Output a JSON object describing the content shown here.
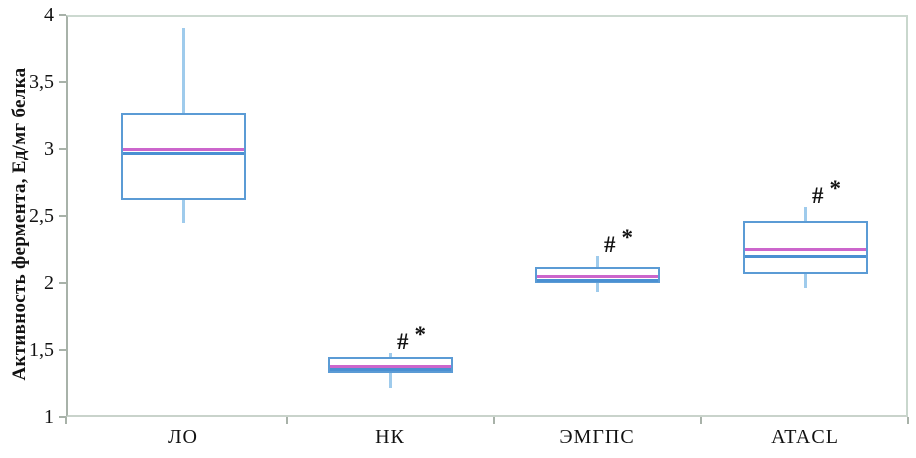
{
  "chart_data": {
    "type": "boxplot",
    "title": "",
    "xlabel": "",
    "ylabel": "Активность фермента, Ед/мг белка",
    "ylim": [
      1,
      4
    ],
    "grid": false,
    "legend": false,
    "yticks": [
      {
        "value": 1,
        "label": "1"
      },
      {
        "value": 1.5,
        "label": "1,5"
      },
      {
        "value": 2,
        "label": "2"
      },
      {
        "value": 2.5,
        "label": "2,5"
      },
      {
        "value": 3,
        "label": "3"
      },
      {
        "value": 3.5,
        "label": "3,5"
      },
      {
        "value": 4,
        "label": "4"
      }
    ],
    "categories": [
      "ЛО",
      "НК",
      "ЭМГПС",
      "ATACL"
    ],
    "series": [
      {
        "category": "ЛО",
        "whisker_low": 2.45,
        "q1": 2.62,
        "median": 2.97,
        "mean": 3.0,
        "q3": 3.27,
        "whisker_high": 3.9,
        "annotation": ""
      },
      {
        "category": "НК",
        "whisker_low": 1.22,
        "q1": 1.33,
        "median": 1.36,
        "mean": 1.38,
        "q3": 1.45,
        "whisker_high": 1.48,
        "annotation": "#*"
      },
      {
        "category": "ЭМГПС",
        "whisker_low": 1.93,
        "q1": 2.0,
        "median": 2.02,
        "mean": 2.05,
        "q3": 2.12,
        "whisker_high": 2.2,
        "annotation": "#*"
      },
      {
        "category": "ATACL",
        "whisker_low": 1.96,
        "q1": 2.07,
        "median": 2.2,
        "mean": 2.25,
        "q3": 2.46,
        "whisker_high": 2.57,
        "annotation": "#*"
      }
    ],
    "colors": {
      "box_border": "#5b9bd5",
      "median_line": "#4a90d2",
      "mean_line": "#cc66cc",
      "whisker": "#9fcbec",
      "frame": "#c9d6cc",
      "axis": "#a8b2a9",
      "text": "#121212",
      "background": "#ffffff"
    }
  }
}
